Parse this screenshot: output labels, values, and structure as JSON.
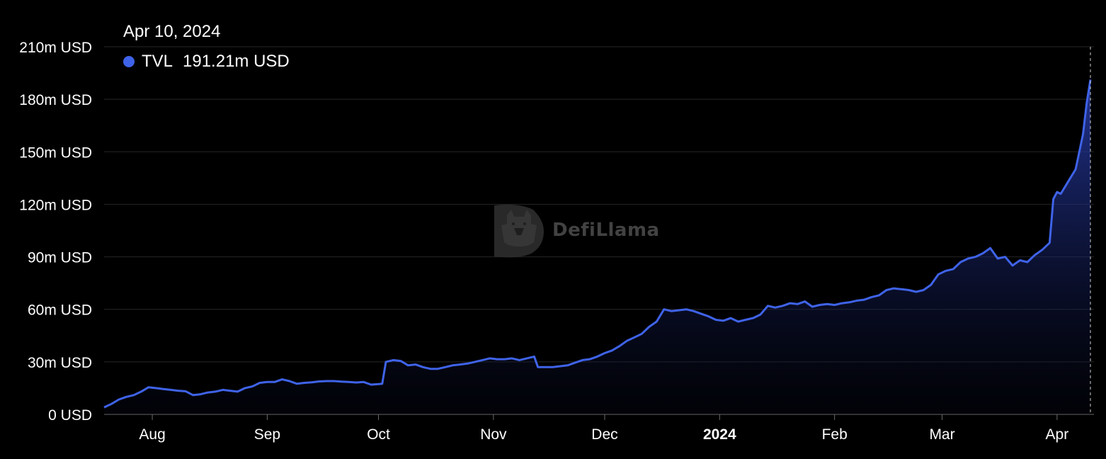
{
  "tooltip": {
    "date": "Apr 10, 2024",
    "series_name": "TVL",
    "value": "191.21m USD"
  },
  "watermark": "DefiLlama",
  "colors": {
    "line": "#3f63e8",
    "area_top": "#2a3fb0",
    "grid": "#262626",
    "axis": "#6a6a6a",
    "text": "#ffffff"
  },
  "chart_data": {
    "type": "area",
    "title": "",
    "xlabel": "",
    "ylabel": "",
    "ylim": [
      0,
      210
    ],
    "y_unit": "m USD",
    "grid": true,
    "y_ticks": [
      "0 USD",
      "30m USD",
      "60m USD",
      "90m USD",
      "120m USD",
      "150m USD",
      "180m USD",
      "210m USD"
    ],
    "y_tick_values": [
      0,
      30,
      60,
      90,
      120,
      150,
      180,
      210
    ],
    "x_ticks": [
      {
        "label": "Aug",
        "date": "2023-08-01"
      },
      {
        "label": "Sep",
        "date": "2023-09-01"
      },
      {
        "label": "Oct",
        "date": "2023-10-01"
      },
      {
        "label": "Nov",
        "date": "2023-11-01"
      },
      {
        "label": "Dec",
        "date": "2023-12-01"
      },
      {
        "label": "2024",
        "date": "2024-01-01",
        "bold": true
      },
      {
        "label": "Feb",
        "date": "2024-02-01"
      },
      {
        "label": "Mar",
        "date": "2024-03-01"
      },
      {
        "label": "Apr",
        "date": "2024-04-01"
      }
    ],
    "xlim": [
      "2023-07-19",
      "2024-04-10"
    ],
    "series": [
      {
        "name": "TVL",
        "points": [
          [
            "2023-07-19",
            4
          ],
          [
            "2023-07-21",
            6
          ],
          [
            "2023-07-23",
            8.5
          ],
          [
            "2023-07-25",
            10
          ],
          [
            "2023-07-27",
            11
          ],
          [
            "2023-07-29",
            13
          ],
          [
            "2023-07-31",
            15.5
          ],
          [
            "2023-08-02",
            15
          ],
          [
            "2023-08-04",
            14.5
          ],
          [
            "2023-08-06",
            14
          ],
          [
            "2023-08-08",
            13.5
          ],
          [
            "2023-08-10",
            13.2
          ],
          [
            "2023-08-12",
            11
          ],
          [
            "2023-08-14",
            11.5
          ],
          [
            "2023-08-16",
            12.5
          ],
          [
            "2023-08-18",
            13
          ],
          [
            "2023-08-20",
            14
          ],
          [
            "2023-08-22",
            13.5
          ],
          [
            "2023-08-24",
            13
          ],
          [
            "2023-08-26",
            15
          ],
          [
            "2023-08-28",
            16
          ],
          [
            "2023-08-30",
            18
          ],
          [
            "2023-09-01",
            18.5
          ],
          [
            "2023-09-03",
            18.5
          ],
          [
            "2023-09-05",
            20
          ],
          [
            "2023-09-07",
            19
          ],
          [
            "2023-09-09",
            17.5
          ],
          [
            "2023-09-11",
            18
          ],
          [
            "2023-09-13",
            18.3
          ],
          [
            "2023-09-15",
            18.8
          ],
          [
            "2023-09-17",
            19
          ],
          [
            "2023-09-19",
            19
          ],
          [
            "2023-09-21",
            18.7
          ],
          [
            "2023-09-23",
            18.5
          ],
          [
            "2023-09-25",
            18.2
          ],
          [
            "2023-09-27",
            18.5
          ],
          [
            "2023-09-29",
            17
          ],
          [
            "2023-10-01",
            17.3
          ],
          [
            "2023-10-02",
            17.5
          ],
          [
            "2023-10-03",
            30
          ],
          [
            "2023-10-05",
            31
          ],
          [
            "2023-10-07",
            30.5
          ],
          [
            "2023-10-09",
            28
          ],
          [
            "2023-10-11",
            28.5
          ],
          [
            "2023-10-13",
            27
          ],
          [
            "2023-10-15",
            26
          ],
          [
            "2023-10-17",
            26
          ],
          [
            "2023-10-19",
            27
          ],
          [
            "2023-10-21",
            28
          ],
          [
            "2023-10-23",
            28.5
          ],
          [
            "2023-10-25",
            29
          ],
          [
            "2023-10-27",
            30
          ],
          [
            "2023-10-29",
            31
          ],
          [
            "2023-10-31",
            32
          ],
          [
            "2023-11-02",
            31.5
          ],
          [
            "2023-11-04",
            31.5
          ],
          [
            "2023-11-06",
            32
          ],
          [
            "2023-11-08",
            31
          ],
          [
            "2023-11-10",
            32
          ],
          [
            "2023-11-12",
            33
          ],
          [
            "2023-11-13",
            27
          ],
          [
            "2023-11-15",
            27
          ],
          [
            "2023-11-17",
            27
          ],
          [
            "2023-11-19",
            27.5
          ],
          [
            "2023-11-21",
            28
          ],
          [
            "2023-11-23",
            29.5
          ],
          [
            "2023-11-25",
            31
          ],
          [
            "2023-11-27",
            31.5
          ],
          [
            "2023-11-29",
            33
          ],
          [
            "2023-12-01",
            35
          ],
          [
            "2023-12-03",
            36.5
          ],
          [
            "2023-12-05",
            39
          ],
          [
            "2023-12-07",
            42
          ],
          [
            "2023-12-09",
            44
          ],
          [
            "2023-12-11",
            46
          ],
          [
            "2023-12-13",
            50
          ],
          [
            "2023-12-15",
            53
          ],
          [
            "2023-12-17",
            60
          ],
          [
            "2023-12-19",
            59
          ],
          [
            "2023-12-21",
            59.5
          ],
          [
            "2023-12-23",
            60
          ],
          [
            "2023-12-25",
            59
          ],
          [
            "2023-12-27",
            57.5
          ],
          [
            "2023-12-29",
            56
          ],
          [
            "2023-12-31",
            54
          ],
          [
            "2024-01-02",
            53.5
          ],
          [
            "2024-01-04",
            55
          ],
          [
            "2024-01-06",
            53
          ],
          [
            "2024-01-08",
            54
          ],
          [
            "2024-01-10",
            55
          ],
          [
            "2024-01-12",
            57
          ],
          [
            "2024-01-14",
            62
          ],
          [
            "2024-01-16",
            61
          ],
          [
            "2024-01-18",
            62
          ],
          [
            "2024-01-20",
            63.5
          ],
          [
            "2024-01-22",
            63
          ],
          [
            "2024-01-24",
            64.5
          ],
          [
            "2024-01-26",
            61.5
          ],
          [
            "2024-01-28",
            62.5
          ],
          [
            "2024-01-30",
            63
          ],
          [
            "2024-02-01",
            62.5
          ],
          [
            "2024-02-03",
            63.5
          ],
          [
            "2024-02-05",
            64
          ],
          [
            "2024-02-07",
            65
          ],
          [
            "2024-02-09",
            65.5
          ],
          [
            "2024-02-11",
            67
          ],
          [
            "2024-02-13",
            68
          ],
          [
            "2024-02-15",
            71
          ],
          [
            "2024-02-17",
            72
          ],
          [
            "2024-02-19",
            71.5
          ],
          [
            "2024-02-21",
            71
          ],
          [
            "2024-02-23",
            70
          ],
          [
            "2024-02-25",
            71
          ],
          [
            "2024-02-27",
            74
          ],
          [
            "2024-02-29",
            80
          ],
          [
            "2024-03-02",
            82
          ],
          [
            "2024-03-04",
            83
          ],
          [
            "2024-03-06",
            87
          ],
          [
            "2024-03-08",
            89
          ],
          [
            "2024-03-10",
            90
          ],
          [
            "2024-03-12",
            92
          ],
          [
            "2024-03-14",
            95
          ],
          [
            "2024-03-16",
            89
          ],
          [
            "2024-03-18",
            90
          ],
          [
            "2024-03-20",
            85
          ],
          [
            "2024-03-22",
            88
          ],
          [
            "2024-03-24",
            87
          ],
          [
            "2024-03-26",
            91
          ],
          [
            "2024-03-28",
            94
          ],
          [
            "2024-03-30",
            98
          ],
          [
            "2024-03-31",
            123
          ],
          [
            "2024-04-01",
            127
          ],
          [
            "2024-04-02",
            126
          ],
          [
            "2024-04-04",
            133
          ],
          [
            "2024-04-06",
            140
          ],
          [
            "2024-04-08",
            160
          ],
          [
            "2024-04-09",
            178
          ],
          [
            "2024-04-10",
            191.21
          ]
        ]
      }
    ]
  }
}
